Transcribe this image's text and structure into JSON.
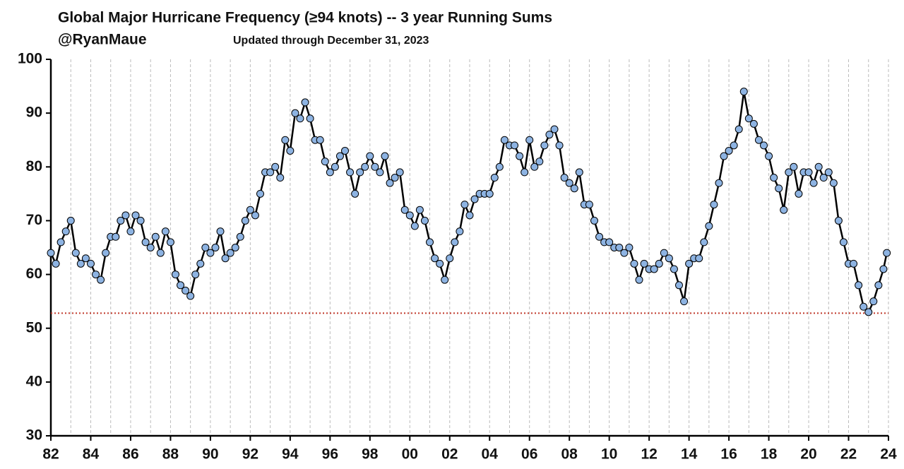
{
  "chart_data": {
    "type": "line",
    "title": "Global Major Hurricane Frequency (≥94 knots)  -- 3 year Running Sums",
    "subtitle": "@RyanMaue",
    "annotation": "Updated through December 31, 2023",
    "x": [
      1982,
      1982.25,
      1982.5,
      1982.75,
      1983,
      1983.25,
      1983.5,
      1983.75,
      1984,
      1984.25,
      1984.5,
      1984.75,
      1985,
      1985.25,
      1985.5,
      1985.75,
      1986,
      1986.25,
      1986.5,
      1986.75,
      1987,
      1987.25,
      1987.5,
      1987.75,
      1988,
      1988.25,
      1988.5,
      1988.75,
      1989,
      1989.25,
      1989.5,
      1989.75,
      1990,
      1990.25,
      1990.5,
      1990.75,
      1991,
      1991.25,
      1991.5,
      1991.75,
      1992,
      1992.25,
      1992.5,
      1992.75,
      1993,
      1993.25,
      1993.5,
      1993.75,
      1994,
      1994.25,
      1994.5,
      1994.75,
      1995,
      1995.25,
      1995.5,
      1995.75,
      1996,
      1996.25,
      1996.5,
      1996.75,
      1997,
      1997.25,
      1997.5,
      1997.75,
      1998,
      1998.25,
      1998.5,
      1998.75,
      1999,
      1999.25,
      1999.5,
      1999.75,
      2000,
      2000.25,
      2000.5,
      2000.75,
      2001,
      2001.25,
      2001.5,
      2001.75,
      2002,
      2002.25,
      2002.5,
      2002.75,
      2003,
      2003.25,
      2003.5,
      2003.75,
      2004,
      2004.25,
      2004.5,
      2004.75,
      2005,
      2005.25,
      2005.5,
      2005.75,
      2006,
      2006.25,
      2006.5,
      2006.75,
      2007,
      2007.25,
      2007.5,
      2007.75,
      2008,
      2008.25,
      2008.5,
      2008.75,
      2009,
      2009.25,
      2009.5,
      2009.75,
      2010,
      2010.25,
      2010.5,
      2010.75,
      2011,
      2011.25,
      2011.5,
      2011.75,
      2012,
      2012.25,
      2012.5,
      2012.75,
      2013,
      2013.25,
      2013.5,
      2013.75,
      2014,
      2014.25,
      2014.5,
      2014.75,
      2015,
      2015.25,
      2015.5,
      2015.75,
      2016,
      2016.25,
      2016.5,
      2016.75,
      2017,
      2017.25,
      2017.5,
      2017.75,
      2018,
      2018.25,
      2018.5,
      2018.75,
      2019,
      2019.25,
      2019.5,
      2019.75,
      2020,
      2020.25,
      2020.5,
      2020.75,
      2021,
      2021.25,
      2021.5,
      2021.75,
      2022,
      2022.25,
      2022.5,
      2022.75,
      2023,
      2023.25,
      2023.5,
      2023.75,
      2023.917
    ],
    "series": [
      {
        "name": "3 year Running Sums",
        "color": "#8db3e2",
        "line_color": "#000000",
        "values": [
          64,
          62,
          66,
          68,
          70,
          64,
          62,
          63,
          62,
          60,
          59,
          64,
          67,
          67,
          70,
          71,
          68,
          71,
          70,
          66,
          65,
          67,
          64,
          68,
          66,
          60,
          58,
          57,
          56,
          60,
          62,
          65,
          64,
          65,
          68,
          63,
          64,
          65,
          67,
          70,
          72,
          71,
          75,
          79,
          79,
          80,
          78,
          85,
          83,
          90,
          89,
          92,
          89,
          85,
          85,
          81,
          79,
          80,
          82,
          83,
          79,
          75,
          79,
          80,
          82,
          80,
          79,
          82,
          77,
          78,
          79,
          72,
          71,
          69,
          72,
          70,
          66,
          63,
          62,
          59,
          63,
          66,
          68,
          73,
          71,
          74,
          75,
          75,
          75,
          78,
          80,
          85,
          84,
          84,
          82,
          79,
          85,
          80,
          81,
          84,
          86,
          87,
          84,
          78,
          77,
          76,
          79,
          73,
          73,
          70,
          67,
          66,
          66,
          65,
          65,
          64,
          65,
          62,
          59,
          62,
          61,
          61,
          62,
          64,
          63,
          61,
          58,
          55,
          62,
          63,
          63,
          66,
          69,
          73,
          77,
          82,
          83,
          84,
          87,
          94,
          89,
          88,
          85,
          84,
          82,
          78,
          76,
          72,
          79,
          80,
          75,
          79,
          79,
          77,
          80,
          78,
          79,
          77,
          70,
          66,
          62,
          62,
          58,
          54,
          53,
          55,
          58,
          61,
          64
        ]
      }
    ],
    "reference_line": {
      "value": 52.8,
      "color": "#c0392b"
    },
    "xlim": [
      1982,
      2024
    ],
    "xticks": [
      {
        "value": 1982,
        "label": "82"
      },
      {
        "value": 1984,
        "label": "84"
      },
      {
        "value": 1986,
        "label": "86"
      },
      {
        "value": 1988,
        "label": "88"
      },
      {
        "value": 1990,
        "label": "90"
      },
      {
        "value": 1992,
        "label": "92"
      },
      {
        "value": 1994,
        "label": "94"
      },
      {
        "value": 1996,
        "label": "96"
      },
      {
        "value": 1998,
        "label": "98"
      },
      {
        "value": 2000,
        "label": "00"
      },
      {
        "value": 2002,
        "label": "02"
      },
      {
        "value": 2004,
        "label": "04"
      },
      {
        "value": 2006,
        "label": "06"
      },
      {
        "value": 2008,
        "label": "08"
      },
      {
        "value": 2010,
        "label": "10"
      },
      {
        "value": 2012,
        "label": "12"
      },
      {
        "value": 2014,
        "label": "14"
      },
      {
        "value": 2016,
        "label": "16"
      },
      {
        "value": 2018,
        "label": "18"
      },
      {
        "value": 2020,
        "label": "20"
      },
      {
        "value": 2022,
        "label": "22"
      },
      {
        "value": 2024,
        "label": "24"
      }
    ],
    "xminor": [
      1983,
      1985,
      1987,
      1989,
      1991,
      1993,
      1995,
      1997,
      1999,
      2001,
      2003,
      2005,
      2007,
      2009,
      2011,
      2013,
      2015,
      2017,
      2019,
      2021,
      2023
    ],
    "ylim": [
      30,
      100
    ],
    "yticks": [
      30,
      40,
      50,
      60,
      70,
      80,
      90,
      100
    ],
    "grid": true
  }
}
